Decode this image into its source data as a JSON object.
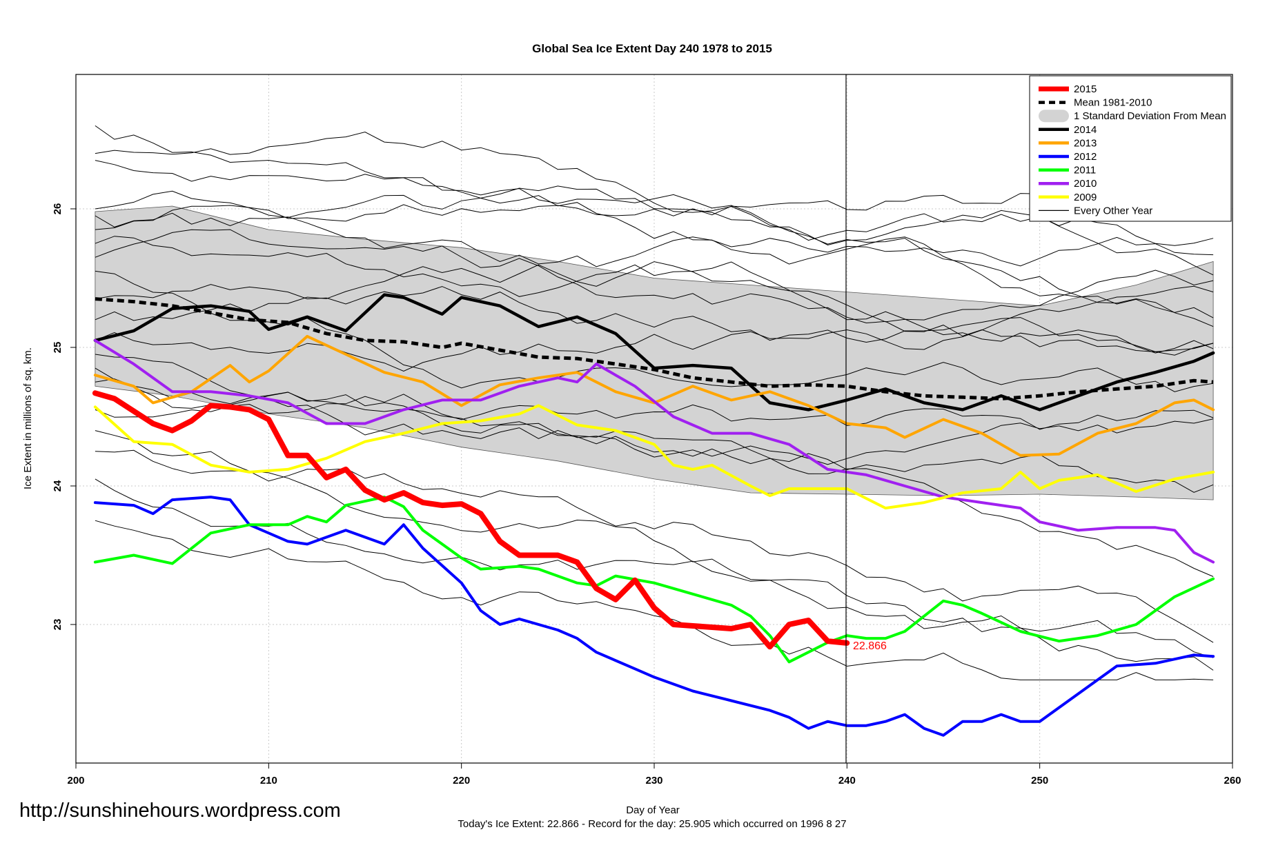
{
  "chart_data": {
    "type": "line",
    "title": "Global Sea Ice Extent Day 240 1978 to 2015",
    "xlabel": "Day of Year",
    "ylabel": "Ice Extent in millions of sq. km.",
    "xlim": [
      200,
      260
    ],
    "ylim": [
      22.0,
      26.97
    ],
    "x_ticks": [
      "200",
      "210",
      "220",
      "230",
      "240",
      "250",
      "260"
    ],
    "y_ticks": [
      "23",
      "24",
      "25",
      "26"
    ],
    "grid": true,
    "reference_day": 240,
    "current_label": "22.866",
    "watermark": "http://sunshinehours.wordpress.com",
    "footer": "Today's Ice Extent: 22.866  - Record for the day: 25.905 which occurred on 1996 8 27",
    "legend_position": "top-right",
    "legend": [
      {
        "label": "2015",
        "color": "#ff0000",
        "style": "solid-thick"
      },
      {
        "label": "Mean 1981-2010",
        "color": "#000000",
        "style": "dashed"
      },
      {
        "label": "1 Standard Deviation From Mean",
        "color": "#d3d3d3",
        "style": "band"
      },
      {
        "label": "2014",
        "color": "#000000",
        "style": "solid"
      },
      {
        "label": "2013",
        "color": "#ffa500",
        "style": "solid"
      },
      {
        "label": "2012",
        "color": "#0000ff",
        "style": "solid"
      },
      {
        "label": "2011",
        "color": "#00ff00",
        "style": "solid"
      },
      {
        "label": "2010",
        "color": "#a020f0",
        "style": "solid"
      },
      {
        "label": "2009",
        "color": "#ffff00",
        "style": "solid"
      },
      {
        "label": "Every Other Year",
        "color": "#000000",
        "style": "thin"
      }
    ],
    "band": {
      "x": [
        201,
        205,
        210,
        215,
        220,
        225,
        230,
        235,
        240,
        245,
        250,
        255,
        259
      ],
      "upper": [
        25.98,
        26.02,
        25.85,
        25.78,
        25.72,
        25.62,
        25.5,
        25.45,
        25.4,
        25.35,
        25.3,
        25.45,
        25.62
      ],
      "lower": [
        24.72,
        24.65,
        24.52,
        24.42,
        24.28,
        24.18,
        24.05,
        23.95,
        23.94,
        23.93,
        23.94,
        23.92,
        23.9
      ]
    },
    "series": [
      {
        "name": "Mean 1981-2010",
        "color": "#000000",
        "dash": "10,6",
        "width": 5,
        "x": [
          201,
          203,
          205,
          207,
          209,
          211,
          213,
          215,
          217,
          219,
          220,
          222,
          224,
          226,
          228,
          230,
          232,
          234,
          236,
          238,
          240,
          242,
          244,
          246,
          248,
          250,
          252,
          254,
          256,
          258,
          259
        ],
        "y": [
          25.35,
          25.33,
          25.3,
          25.25,
          25.2,
          25.18,
          25.1,
          25.05,
          25.04,
          25.0,
          25.03,
          24.98,
          24.93,
          24.92,
          24.88,
          24.84,
          24.78,
          24.75,
          24.72,
          24.73,
          24.72,
          24.68,
          24.65,
          24.64,
          24.63,
          24.65,
          24.68,
          24.7,
          24.72,
          24.76,
          24.75
        ]
      },
      {
        "name": "2014",
        "color": "#000000",
        "dash": "",
        "width": 4.5,
        "x": [
          201,
          203,
          205,
          207,
          209,
          210,
          212,
          214,
          216,
          217,
          219,
          220,
          222,
          224,
          226,
          228,
          230,
          232,
          234,
          236,
          238,
          240,
          242,
          244,
          246,
          248,
          250,
          252,
          254,
          256,
          258,
          259
        ],
        "y": [
          25.05,
          25.12,
          25.28,
          25.3,
          25.26,
          25.13,
          25.22,
          25.12,
          25.38,
          25.36,
          25.24,
          25.36,
          25.3,
          25.15,
          25.22,
          25.1,
          24.85,
          24.87,
          24.85,
          24.6,
          24.55,
          24.62,
          24.7,
          24.6,
          24.55,
          24.65,
          24.55,
          24.65,
          24.75,
          24.82,
          24.9,
          24.96
        ]
      },
      {
        "name": "2013",
        "color": "#ffa500",
        "dash": "",
        "width": 4,
        "x": [
          201,
          203,
          204,
          206,
          208,
          209,
          210,
          212,
          214,
          216,
          218,
          220,
          222,
          224,
          226,
          228,
          230,
          232,
          234,
          236,
          238,
          240,
          242,
          243,
          245,
          247,
          249,
          251,
          253,
          255,
          257,
          258,
          259
        ],
        "y": [
          24.8,
          24.72,
          24.6,
          24.68,
          24.87,
          24.75,
          24.83,
          25.08,
          24.95,
          24.82,
          24.75,
          24.58,
          24.73,
          24.78,
          24.82,
          24.68,
          24.6,
          24.72,
          24.62,
          24.68,
          24.58,
          24.45,
          24.42,
          24.35,
          24.48,
          24.38,
          24.22,
          24.23,
          24.38,
          24.45,
          24.6,
          24.62,
          24.55
        ]
      },
      {
        "name": "2012",
        "color": "#0000ff",
        "dash": "",
        "width": 4,
        "x": [
          201,
          203,
          204,
          205,
          207,
          208,
          209,
          211,
          212,
          214,
          216,
          217,
          218,
          220,
          221,
          222,
          223,
          225,
          226,
          227,
          229,
          230,
          232,
          234,
          236,
          237,
          238,
          239,
          240,
          241,
          242,
          243,
          244,
          245,
          246,
          247,
          248,
          249,
          250,
          252,
          254,
          256,
          258,
          259
        ],
        "y": [
          23.88,
          23.86,
          23.8,
          23.9,
          23.92,
          23.9,
          23.72,
          23.6,
          23.58,
          23.68,
          23.58,
          23.72,
          23.55,
          23.3,
          23.1,
          23.0,
          23.04,
          22.96,
          22.9,
          22.8,
          22.68,
          22.62,
          22.52,
          22.45,
          22.38,
          22.33,
          22.25,
          22.3,
          22.27,
          22.27,
          22.3,
          22.35,
          22.25,
          22.2,
          22.3,
          22.3,
          22.35,
          22.3,
          22.3,
          22.5,
          22.7,
          22.72,
          22.78,
          22.77
        ]
      },
      {
        "name": "2011",
        "color": "#00ff00",
        "dash": "",
        "width": 4,
        "x": [
          201,
          203,
          205,
          207,
          209,
          211,
          212,
          213,
          214,
          216,
          217,
          218,
          220,
          221,
          223,
          224,
          226,
          227,
          228,
          230,
          232,
          234,
          235,
          236,
          237,
          238,
          239,
          240,
          241,
          242,
          243,
          245,
          246,
          247,
          249,
          251,
          253,
          255,
          257,
          259
        ],
        "y": [
          23.45,
          23.5,
          23.44,
          23.66,
          23.72,
          23.72,
          23.78,
          23.74,
          23.86,
          23.92,
          23.85,
          23.68,
          23.48,
          23.4,
          23.42,
          23.4,
          23.3,
          23.28,
          23.35,
          23.3,
          23.22,
          23.14,
          23.06,
          22.92,
          22.73,
          22.8,
          22.87,
          22.92,
          22.9,
          22.9,
          22.95,
          23.17,
          23.14,
          23.08,
          22.95,
          22.88,
          22.92,
          23.0,
          23.2,
          23.33
        ]
      },
      {
        "name": "2010",
        "color": "#a020f0",
        "dash": "",
        "width": 4,
        "x": [
          201,
          203,
          205,
          207,
          209,
          211,
          213,
          215,
          217,
          219,
          221,
          223,
          225,
          226,
          227,
          229,
          231,
          233,
          235,
          237,
          239,
          241,
          243,
          245,
          247,
          249,
          250,
          252,
          254,
          256,
          257,
          258,
          259
        ],
        "y": [
          25.05,
          24.88,
          24.68,
          24.68,
          24.65,
          24.6,
          24.45,
          24.45,
          24.55,
          24.62,
          24.62,
          24.72,
          24.78,
          24.75,
          24.88,
          24.72,
          24.5,
          24.38,
          24.38,
          24.3,
          24.12,
          24.08,
          24.0,
          23.92,
          23.88,
          23.84,
          23.74,
          23.68,
          23.7,
          23.7,
          23.68,
          23.52,
          23.45
        ]
      },
      {
        "name": "2009",
        "color": "#ffff00",
        "dash": "",
        "width": 4,
        "x": [
          201,
          203,
          205,
          207,
          209,
          211,
          213,
          215,
          217,
          219,
          221,
          223,
          224,
          226,
          228,
          230,
          231,
          232,
          233,
          235,
          236,
          237,
          238,
          240,
          242,
          244,
          246,
          248,
          249,
          250,
          251,
          253,
          255,
          257,
          259
        ],
        "y": [
          24.57,
          24.32,
          24.3,
          24.15,
          24.1,
          24.12,
          24.2,
          24.32,
          24.38,
          24.45,
          24.47,
          24.52,
          24.58,
          24.44,
          24.4,
          24.3,
          24.15,
          24.12,
          24.15,
          24.0,
          23.93,
          23.98,
          23.98,
          23.98,
          23.84,
          23.88,
          23.95,
          23.98,
          24.1,
          23.98,
          24.04,
          24.08,
          23.96,
          24.05,
          24.1
        ]
      },
      {
        "name": "2015",
        "color": "#ff0000",
        "dash": "",
        "width": 8,
        "x": [
          201,
          202,
          204,
          205,
          206,
          207,
          208,
          209,
          210,
          211,
          212,
          213,
          214,
          215,
          216,
          217,
          218,
          219,
          220,
          221,
          222,
          223,
          224,
          225,
          226,
          227,
          228,
          229,
          230,
          231,
          232,
          233,
          234,
          235,
          236,
          237,
          238,
          239,
          240
        ],
        "y": [
          24.67,
          24.63,
          24.45,
          24.4,
          24.47,
          24.58,
          24.57,
          24.55,
          24.48,
          24.22,
          24.22,
          24.06,
          24.12,
          23.97,
          23.9,
          23.95,
          23.88,
          23.86,
          23.87,
          23.8,
          23.6,
          23.5,
          23.5,
          23.5,
          23.45,
          23.26,
          23.18,
          23.32,
          23.12,
          23.0,
          22.99,
          22.98,
          22.97,
          23.0,
          22.84,
          23.0,
          23.03,
          22.88,
          22.866
        ]
      }
    ]
  }
}
